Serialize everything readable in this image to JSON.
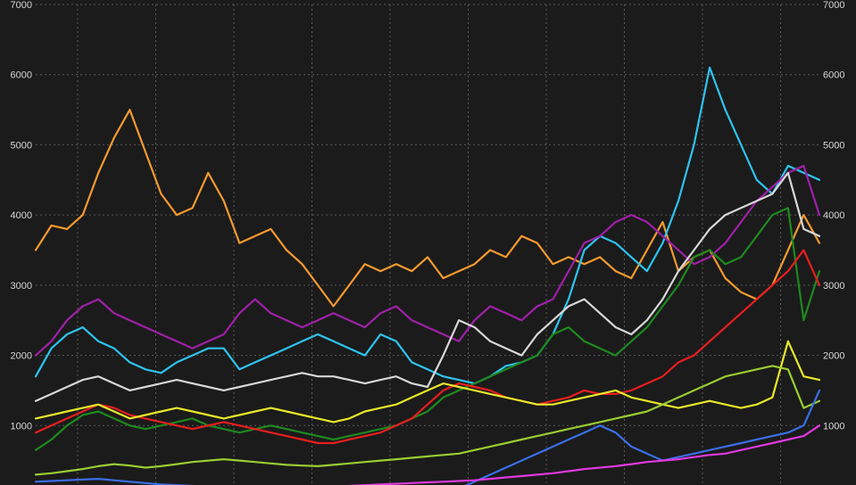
{
  "chart_data": {
    "type": "line",
    "grid": true,
    "legend": "none",
    "background": "#1b1b1b",
    "ylim": [
      0,
      7000
    ],
    "y_ticks": [
      1000,
      2000,
      3000,
      4000,
      5000,
      6000,
      7000
    ],
    "x": [
      0,
      2,
      4,
      6,
      8,
      10,
      12,
      14,
      16,
      18,
      20,
      22,
      24,
      26,
      28,
      30,
      32,
      34,
      36,
      38,
      40,
      42,
      44,
      46,
      48,
      50,
      52,
      54,
      56,
      58,
      60,
      62,
      64,
      66,
      68,
      70,
      72,
      74,
      76,
      78,
      80,
      82,
      84,
      86,
      88,
      90,
      92,
      94,
      96,
      98,
      100
    ],
    "series": [
      {
        "color": "#f59a2f",
        "values": [
          3500,
          3850,
          3800,
          4000,
          4600,
          5100,
          5500,
          4900,
          4300,
          4000,
          4100,
          4600,
          4200,
          3600,
          3700,
          3800,
          3500,
          3300,
          3000,
          2700,
          3000,
          3300,
          3200,
          3300,
          3200,
          3400,
          3100,
          3200,
          3300,
          3500,
          3400,
          3700,
          3600,
          3300,
          3400,
          3300,
          3400,
          3200,
          3100,
          3500,
          3900,
          3200,
          3400,
          3500,
          3100,
          2900,
          2800,
          3000,
          3500,
          4000,
          3600
        ]
      },
      {
        "color": "#2ec4ef",
        "values": [
          1700,
          2100,
          2300,
          2400,
          2200,
          2100,
          1900,
          1800,
          1750,
          1900,
          2000,
          2100,
          2100,
          1800,
          1900,
          2000,
          2100,
          2200,
          2300,
          2200,
          2100,
          2000,
          2300,
          2200,
          1900,
          1800,
          1700,
          1650,
          1600,
          1700,
          1850,
          1900,
          2000,
          2300,
          2800,
          3500,
          3700,
          3600,
          3400,
          3200,
          3600,
          4200,
          5000,
          6100,
          5500,
          5000,
          4500,
          4300,
          4700,
          4600,
          4500
        ]
      },
      {
        "color": "#a020a8",
        "values": [
          2000,
          2200,
          2500,
          2700,
          2800,
          2600,
          2500,
          2400,
          2300,
          2200,
          2100,
          2200,
          2300,
          2600,
          2800,
          2600,
          2500,
          2400,
          2500,
          2600,
          2500,
          2400,
          2600,
          2700,
          2500,
          2400,
          2300,
          2200,
          2500,
          2700,
          2600,
          2500,
          2700,
          2800,
          3200,
          3600,
          3700,
          3900,
          4000,
          3900,
          3700,
          3500,
          3300,
          3400,
          3600,
          3900,
          4200,
          4400,
          4600,
          4700,
          4000
        ]
      },
      {
        "color": "#d8d8d8",
        "values": [
          1350,
          1450,
          1550,
          1650,
          1700,
          1600,
          1500,
          1550,
          1600,
          1650,
          1600,
          1550,
          1500,
          1550,
          1600,
          1650,
          1700,
          1750,
          1700,
          1700,
          1650,
          1600,
          1650,
          1700,
          1600,
          1550,
          2000,
          2500,
          2400,
          2200,
          2100,
          2000,
          2300,
          2500,
          2700,
          2800,
          2600,
          2400,
          2300,
          2500,
          2800,
          3200,
          3500,
          3800,
          4000,
          4100,
          4200,
          4300,
          4600,
          3800,
          3700
        ]
      },
      {
        "color": "#1e8a1e",
        "values": [
          650,
          800,
          1000,
          1150,
          1200,
          1100,
          1000,
          950,
          1000,
          1050,
          1100,
          1000,
          950,
          900,
          950,
          1000,
          950,
          900,
          850,
          800,
          850,
          900,
          950,
          1000,
          1100,
          1200,
          1400,
          1500,
          1600,
          1700,
          1800,
          1900,
          2000,
          2300,
          2400,
          2200,
          2100,
          2000,
          2200,
          2400,
          2700,
          3000,
          3400,
          3500,
          3300,
          3400,
          3700,
          4000,
          4100,
          2500,
          3200
        ]
      },
      {
        "color": "#e81e1e",
        "values": [
          900,
          1000,
          1100,
          1200,
          1300,
          1250,
          1150,
          1100,
          1050,
          1000,
          950,
          1000,
          1050,
          1000,
          950,
          900,
          850,
          800,
          750,
          750,
          800,
          850,
          900,
          1000,
          1100,
          1300,
          1500,
          1600,
          1550,
          1500,
          1400,
          1350,
          1300,
          1350,
          1400,
          1500,
          1450,
          1450,
          1500,
          1600,
          1700,
          1900,
          2000,
          2200,
          2400,
          2600,
          2800,
          3000,
          3200,
          3500,
          3000
        ]
      },
      {
        "color": "#e9e92a",
        "values": [
          1100,
          1150,
          1200,
          1250,
          1300,
          1200,
          1100,
          1150,
          1200,
          1250,
          1200,
          1150,
          1100,
          1150,
          1200,
          1250,
          1200,
          1150,
          1100,
          1050,
          1100,
          1200,
          1250,
          1300,
          1400,
          1500,
          1600,
          1550,
          1500,
          1450,
          1400,
          1350,
          1300,
          1300,
          1350,
          1400,
          1450,
          1500,
          1400,
          1350,
          1300,
          1250,
          1300,
          1350,
          1300,
          1250,
          1300,
          1400,
          2200,
          1700,
          1650
        ]
      },
      {
        "color": "#9acd32",
        "values": [
          300,
          320,
          350,
          380,
          420,
          450,
          430,
          400,
          420,
          450,
          480,
          500,
          520,
          500,
          480,
          460,
          440,
          430,
          420,
          440,
          460,
          480,
          500,
          520,
          540,
          560,
          580,
          600,
          650,
          700,
          750,
          800,
          850,
          900,
          950,
          1000,
          1050,
          1100,
          1150,
          1200,
          1300,
          1400,
          1500,
          1600,
          1700,
          1750,
          1800,
          1850,
          1800,
          1250,
          1350
        ]
      },
      {
        "color": "#3a6fe8",
        "values": [
          200,
          210,
          220,
          230,
          240,
          220,
          200,
          180,
          160,
          150,
          140,
          130,
          120,
          110,
          100,
          90,
          80,
          70,
          60,
          50,
          40,
          30,
          50,
          60,
          70,
          80,
          90,
          100,
          200,
          300,
          400,
          500,
          600,
          700,
          800,
          900,
          1000,
          900,
          700,
          600,
          500,
          550,
          600,
          650,
          700,
          750,
          800,
          850,
          900,
          1000,
          1500
        ]
      },
      {
        "color": "#e038e0",
        "values": [
          100,
          90,
          80,
          70,
          60,
          50,
          60,
          70,
          80,
          90,
          100,
          110,
          120,
          110,
          100,
          90,
          100,
          110,
          120,
          130,
          140,
          150,
          160,
          170,
          180,
          190,
          200,
          210,
          220,
          240,
          260,
          280,
          300,
          320,
          350,
          380,
          400,
          420,
          450,
          480,
          500,
          520,
          550,
          580,
          600,
          650,
          700,
          750,
          800,
          850,
          1000
        ]
      }
    ]
  }
}
